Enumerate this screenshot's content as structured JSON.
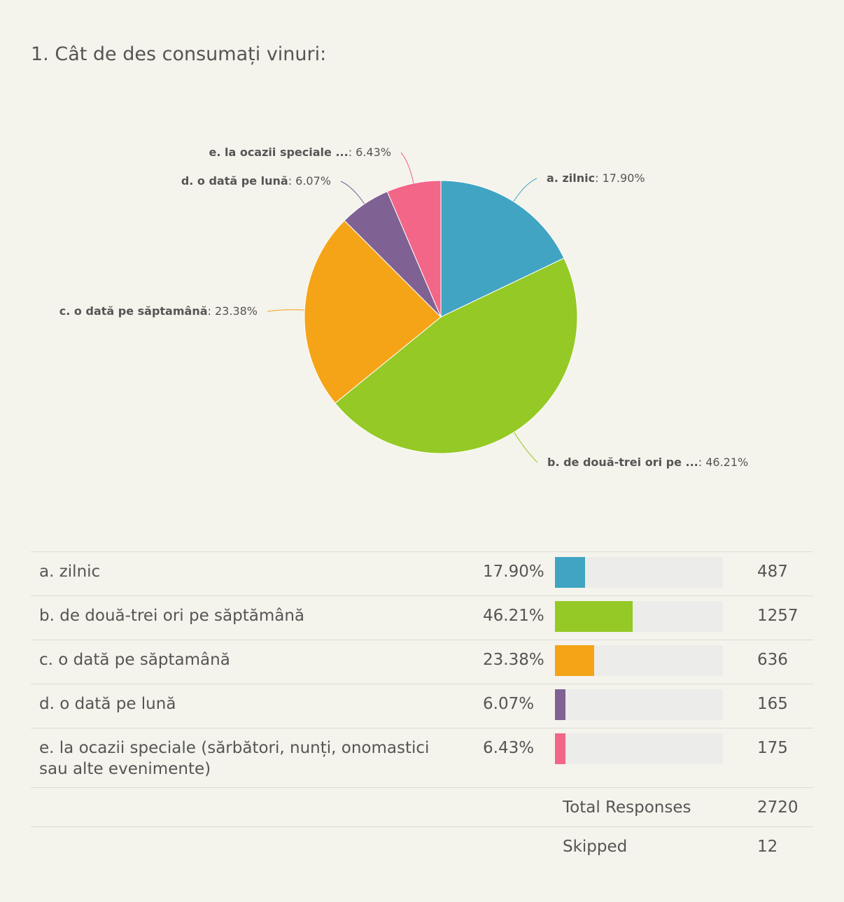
{
  "question": {
    "title": "1. Cât de des consumați vinuri:"
  },
  "chart_data": {
    "type": "pie",
    "slices": [
      {
        "label": "a. zilnic",
        "value": 17.9,
        "pct_text": "17.90%",
        "color": "#41a4c3"
      },
      {
        "label": "b. de două-trei ori pe ...",
        "value": 46.21,
        "pct_text": "46.21%",
        "color": "#95c925"
      },
      {
        "label": "c. o dată pe săptamână",
        "value": 23.38,
        "pct_text": "23.38%",
        "color": "#f5a418"
      },
      {
        "label": "d. o dată pe lună",
        "value": 6.07,
        "pct_text": "6.07%",
        "color": "#7f6193"
      },
      {
        "label": "e. la ocazii speciale ...",
        "value": 6.43,
        "pct_text": "6.43%",
        "color": "#f26687"
      }
    ]
  },
  "results": {
    "rows": [
      {
        "answer": "a. zilnic",
        "percent": "17.90%",
        "fraction": 0.179,
        "count": "487",
        "color": "#41a4c3"
      },
      {
        "answer": "b. de două-trei ori pe săptămână",
        "percent": "46.21%",
        "fraction": 0.4621,
        "count": "1257",
        "color": "#95c925"
      },
      {
        "answer": "c. o dată pe săptamână",
        "percent": "23.38%",
        "fraction": 0.2338,
        "count": "636",
        "color": "#f5a418"
      },
      {
        "answer": "d. o dată pe lună",
        "percent": "6.07%",
        "fraction": 0.0607,
        "count": "165",
        "color": "#7f6193"
      },
      {
        "answer": "e. la ocazii speciale (sărbători, nunți, onomastici sau alte evenimente)",
        "percent": "6.43%",
        "fraction": 0.0643,
        "count": "175",
        "color": "#f26687"
      }
    ],
    "total_label": "Total Responses",
    "total_value": "2720",
    "skipped_label": "Skipped",
    "skipped_value": "12"
  }
}
